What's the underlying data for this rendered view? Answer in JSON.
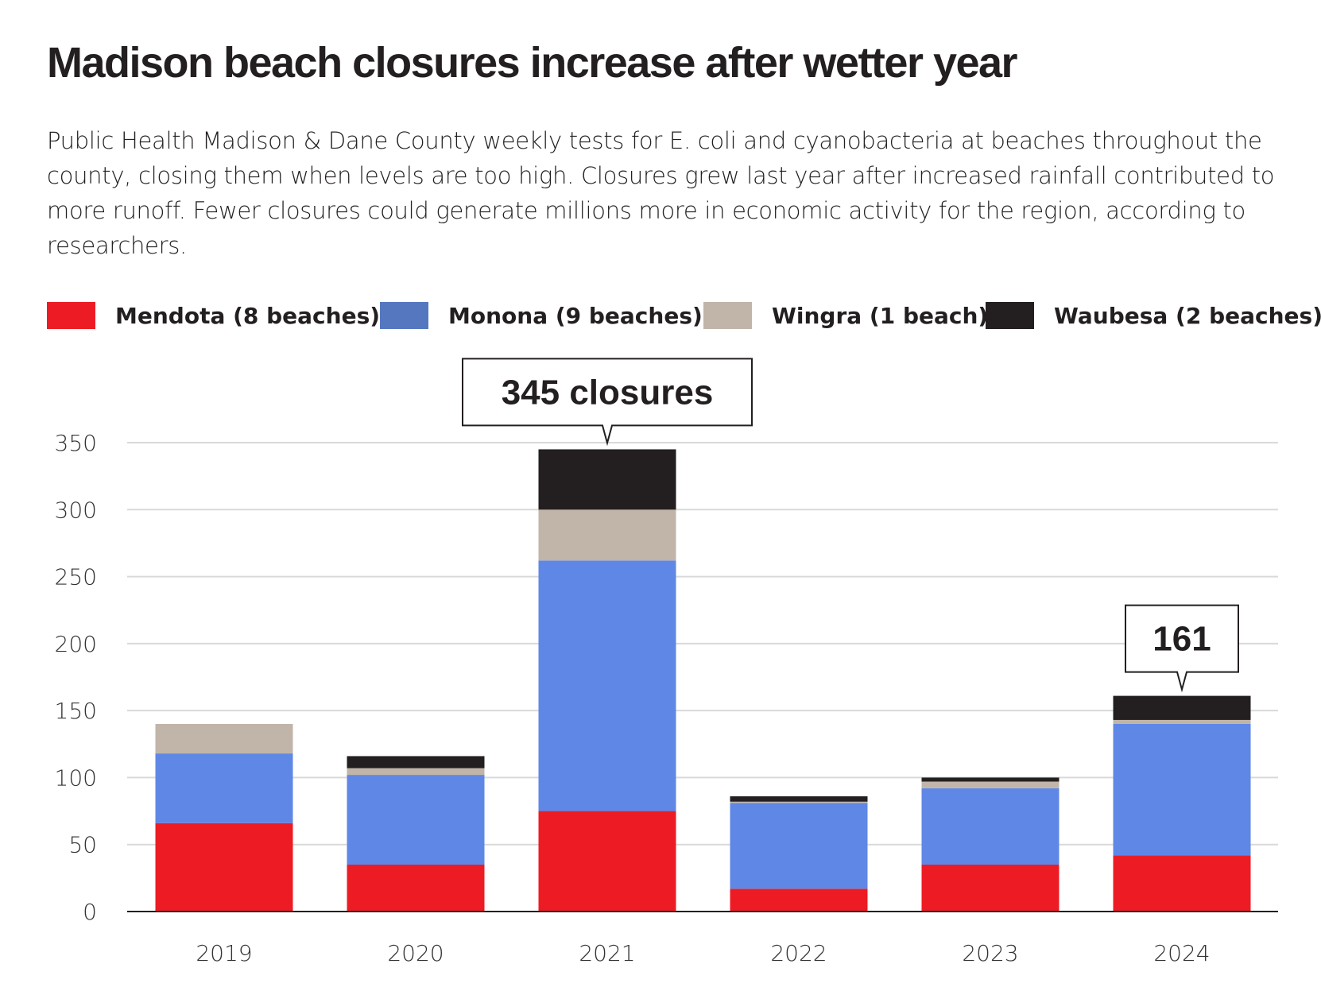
{
  "title": "Madison beach closures increase after wetter year",
  "subtitle": "Public Health Madison & Dane County weekly tests for E. coli and cyanobacteria at beaches throughout the county, closing them when levels are too high. Closures grew last year after increased rainfall contributed to more runoff. Fewer closures could generate millions more in economic activity for the region, according to researchers.",
  "chart_data": {
    "type": "bar",
    "stacked": true,
    "categories": [
      "2019",
      "2020",
      "2021",
      "2022",
      "2023",
      "2024"
    ],
    "series": [
      {
        "name": "Mendota (8 beaches)",
        "color": "#ed1c24",
        "legend_color": "#ed1c24",
        "values": [
          66,
          35,
          75,
          17,
          35,
          42
        ]
      },
      {
        "name": "Monona (9 beaches)",
        "color": "#5f87e6",
        "legend_color": "#5577bf",
        "values": [
          52,
          67,
          187,
          64,
          57,
          98
        ]
      },
      {
        "name": "Wingra (1 beach)",
        "color": "#c1b5a9",
        "legend_color": "#c1b5a9",
        "values": [
          22,
          5,
          38,
          1,
          5,
          3
        ]
      },
      {
        "name": "Waubesa (2 beaches)",
        "color": "#231f20",
        "legend_color": "#231f20",
        "values": [
          0,
          9,
          45,
          4,
          3,
          18
        ]
      }
    ],
    "ylim": [
      0,
      350
    ],
    "yticks": [
      0,
      50,
      100,
      150,
      200,
      250,
      300,
      350
    ],
    "grid": true,
    "legend_position": "top",
    "annotations": [
      {
        "category": "2021",
        "text": "345 closures",
        "value": 345
      },
      {
        "category": "2024",
        "text": "161",
        "value": 161
      }
    ]
  }
}
